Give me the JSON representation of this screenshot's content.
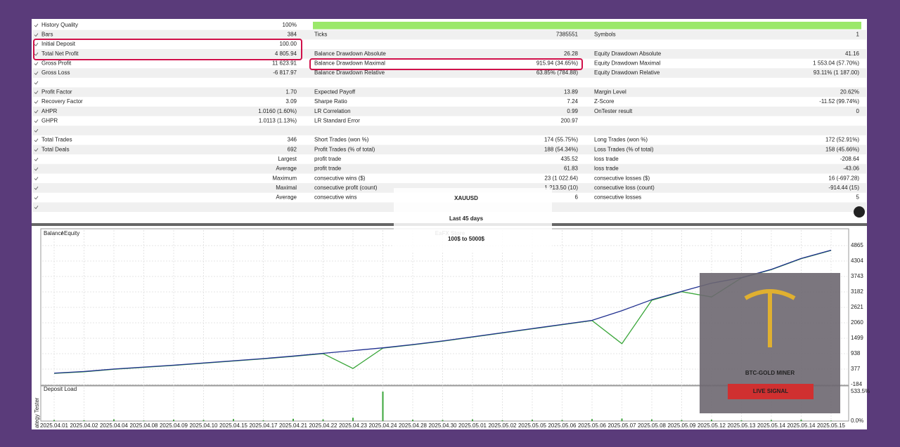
{
  "report": {
    "rows": [
      {
        "c1": "History Quality",
        "v1": "100%"
      },
      {
        "c1": "Bars",
        "v1": "384",
        "c2": "Ticks",
        "v2": "7385551",
        "c3": "Symbols",
        "v3": "1"
      },
      {
        "c1": "Initial Deposit",
        "v1": "100.00"
      },
      {
        "c1": "Total Net Profit",
        "v1": "4 805.94",
        "c2": "Balance Drawdown Absolute",
        "v2": "26.28",
        "c3": "Equity Drawdown Absolute",
        "v3": "41.16"
      },
      {
        "c1": "Gross Profit",
        "v1": "11 623.91",
        "c2": "Balance Drawdown Maximal",
        "v2": "915.94 (34.65%)",
        "c3": "Equity Drawdown Maximal",
        "v3": "1 553.04 (57.70%)"
      },
      {
        "c1": "Gross Loss",
        "v1": "-6 817.97",
        "c2": "Balance Drawdown Relative",
        "v2": "63.85% (784.88)",
        "c3": "Equity Drawdown Relative",
        "v3": "93.11% (1 187.00)"
      },
      {},
      {
        "c1": "Profit Factor",
        "v1": "1.70",
        "c2": "Expected Payoff",
        "v2": "13.89",
        "c3": "Margin Level",
        "v3": "20.62%"
      },
      {
        "c1": "Recovery Factor",
        "v1": "3.09",
        "c2": "Sharpe Ratio",
        "v2": "7.24",
        "c3": "Z-Score",
        "v3": "-11.52 (99.74%)"
      },
      {
        "c1": "AHPR",
        "v1": "1.0160 (1.60%)",
        "c2": "LR Correlation",
        "v2": "0.99",
        "c3": "OnTester result",
        "v3": "0"
      },
      {
        "c1": "GHPR",
        "v1": "1.0113 (1.13%)",
        "c2": "LR Standard Error",
        "v2": "200.97"
      },
      {},
      {
        "c1": "Total Trades",
        "v1": "346",
        "c2": "Short Trades (won %)",
        "v2": "174 (55.75%)",
        "c3": "Long Trades (won %)",
        "v3": "172 (52.91%)"
      },
      {
        "c1": "Total Deals",
        "v1": "692",
        "c2": "Profit Trades (% of total)",
        "v2": "188 (54.34%)",
        "c3": "Loss Trades (% of total)",
        "v3": "158 (45.66%)"
      },
      {
        "v1": "Largest",
        "c2": "profit trade",
        "v2": "435.52",
        "c3": "loss trade",
        "v3": "-208.64"
      },
      {
        "v1": "Average",
        "c2": "profit trade",
        "v2": "61.83",
        "c3": "loss trade",
        "v3": "-43.06"
      },
      {
        "v1": "Maximum",
        "c2": "consecutive wins ($)",
        "v2": "23 (1 022.64)",
        "c3": "consecutive losses ($)",
        "v3": "16 (-697.28)"
      },
      {
        "v1": "Maximal",
        "c2": "consecutive profit (count)",
        "v2": "1 213.50 (10)",
        "c3": "consecutive loss (count)",
        "v3": "-914.44 (15)"
      },
      {
        "v1": "Average",
        "c2": "consecutive wins",
        "v2": "6",
        "c3": "consecutive losses",
        "v3": "5"
      },
      {}
    ]
  },
  "graph": {
    "legend": {
      "balance": "Balance",
      "sep": "/",
      "equity": "Equity"
    },
    "panel_label": "Deposit Load",
    "side_label": "ategy Tester",
    "dates": [
      "2025.04.01",
      "2025.04.02",
      "2025.04.04",
      "2025.04.08",
      "2025.04.09",
      "2025.04.10",
      "2025.04.15",
      "2025.04.17",
      "2025.04.21",
      "2025.04.22",
      "2025.04.23",
      "2025.04.24",
      "2025.04.28",
      "2025.04.30",
      "2025.05.01",
      "2025.05.02",
      "2025.05.05",
      "2025.05.06",
      "2025.05.06",
      "2025.05.07",
      "2025.05.08",
      "2025.05.09",
      "2025.05.12",
      "2025.05.13",
      "2025.05.14",
      "2025.05.14",
      "2025.05.15"
    ],
    "series": [
      {
        "name": "Balance",
        "color": "#1f2f8f",
        "values": [
          230,
          290,
          380,
          450,
          520,
          600,
          680,
          760,
          850,
          950,
          1050,
          1150,
          1270,
          1400,
          1550,
          1700,
          1850,
          2000,
          2150,
          2500,
          2900,
          3200,
          3500,
          3700,
          4000,
          4400,
          4700
        ]
      },
      {
        "name": "Equity",
        "color": "#3aa63a",
        "values": [
          220,
          280,
          370,
          440,
          510,
          590,
          670,
          750,
          840,
          940,
          400,
          1140,
          1260,
          1390,
          1540,
          1690,
          1840,
          1990,
          2140,
          1300,
          2880,
          3190,
          3000,
          3690,
          3990,
          4390,
          4690
        ]
      }
    ],
    "ylim": [
      -184,
      5426
    ],
    "yticks": [
      4865,
      4304,
      3743,
      3182,
      2621,
      2060,
      1499,
      938,
      377,
      -184
    ],
    "load": {
      "color": "#3aa63a",
      "values": [
        20,
        15,
        30,
        10,
        25,
        20,
        35,
        15,
        40,
        30,
        60,
        533,
        25,
        20,
        30,
        15,
        25,
        20,
        35,
        45,
        30,
        20,
        25,
        15,
        20,
        25,
        10
      ],
      "ylim": [
        0,
        533.5
      ],
      "yticks": [
        {
          "value": 533.5,
          "label": "533.5%"
        },
        {
          "value": 0,
          "label": "0.0%"
        }
      ]
    }
  },
  "overlay": {
    "lines": [
      "XAUUSD",
      "Last 45 days",
      "100$ to 5000$"
    ],
    "watermark": "EaFX Store",
    "logo": {
      "title": "BTC-GOLD MINER",
      "badge": "LIVE SIGNAL"
    }
  }
}
